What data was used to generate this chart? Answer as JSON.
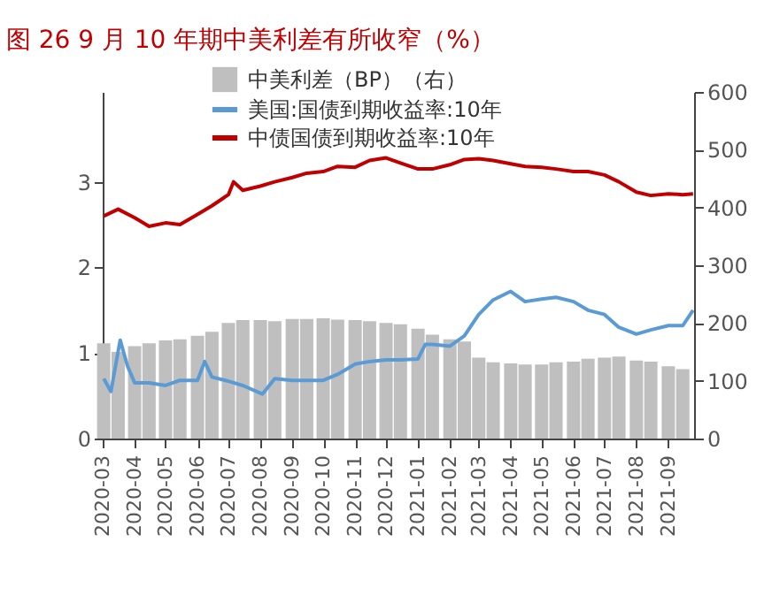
{
  "chart_data": {
    "type": "line",
    "title": "图 26  9 月 10 年期中美利差有所收窄（%）",
    "xlim": [
      "2020-03-01",
      "2021-09-26"
    ],
    "xticks": [
      "2020-03",
      "2020-04",
      "2020-05",
      "2020-06",
      "2020-07",
      "2020-08",
      "2020-09",
      "2020-10",
      "2020-11",
      "2020-12",
      "2021-01",
      "2021-02",
      "2021-03",
      "2021-04",
      "2021-05",
      "2021-06",
      "2021-07",
      "2021-08",
      "2021-09"
    ],
    "ylim": [
      0,
      4.05
    ],
    "yticks": [
      0,
      1,
      2,
      3
    ],
    "y2lim": [
      0,
      600
    ],
    "y2ticks": [
      0,
      100,
      200,
      300,
      400,
      500,
      600
    ],
    "grid": false,
    "legend": "top",
    "series": [
      {
        "name": "中美利差（BP）（右）",
        "type": "bar",
        "axis": "y2",
        "color": "#bfbfbf",
        "x": [
          "2020-03-02",
          "2020-03-16",
          "2020-04-01",
          "2020-04-15",
          "2020-05-01",
          "2020-05-15",
          "2020-06-01",
          "2020-06-15",
          "2020-07-01",
          "2020-07-15",
          "2020-08-01",
          "2020-08-15",
          "2020-09-01",
          "2020-09-15",
          "2020-10-01",
          "2020-10-15",
          "2020-11-01",
          "2020-11-15",
          "2020-12-01",
          "2020-12-15",
          "2021-01-01",
          "2021-01-15",
          "2021-02-01",
          "2021-02-15",
          "2021-03-01",
          "2021-03-15",
          "2021-04-01",
          "2021-04-15",
          "2021-05-01",
          "2021-05-15",
          "2021-06-01",
          "2021-06-15",
          "2021-07-01",
          "2021-07-15",
          "2021-08-01",
          "2021-08-15",
          "2021-09-01",
          "2021-09-15"
        ],
        "values": [
          165,
          150,
          160,
          165,
          170,
          172,
          178,
          185,
          200,
          205,
          205,
          203,
          207,
          207,
          208,
          206,
          205,
          203,
          200,
          198,
          190,
          180,
          172,
          168,
          140,
          132,
          130,
          128,
          128,
          132,
          133,
          138,
          140,
          142,
          135,
          133,
          125,
          120
        ]
      },
      {
        "name": "美国:国债到期收益率:10年",
        "axis": "y",
        "color": "#5b9bd5",
        "x": [
          "2020-03-02",
          "2020-03-09",
          "2020-03-18",
          "2020-03-25",
          "2020-04-01",
          "2020-04-15",
          "2020-05-01",
          "2020-05-15",
          "2020-06-01",
          "2020-06-08",
          "2020-06-15",
          "2020-07-01",
          "2020-07-15",
          "2020-08-03",
          "2020-08-15",
          "2020-09-01",
          "2020-09-15",
          "2020-10-01",
          "2020-10-15",
          "2020-11-01",
          "2020-11-15",
          "2020-12-01",
          "2020-12-15",
          "2021-01-01",
          "2021-01-08",
          "2021-01-15",
          "2021-02-01",
          "2021-02-15",
          "2021-03-01",
          "2021-03-15",
          "2021-04-01",
          "2021-04-15",
          "2021-05-01",
          "2021-05-15",
          "2021-06-01",
          "2021-06-15",
          "2021-07-01",
          "2021-07-15",
          "2021-08-01",
          "2021-08-15",
          "2021-09-01",
          "2021-09-15",
          "2021-09-25"
        ],
        "values": [
          0.7,
          0.55,
          1.15,
          0.85,
          0.65,
          0.65,
          0.62,
          0.68,
          0.68,
          0.9,
          0.72,
          0.67,
          0.62,
          0.52,
          0.7,
          0.68,
          0.68,
          0.68,
          0.75,
          0.87,
          0.9,
          0.92,
          0.92,
          0.93,
          1.1,
          1.1,
          1.08,
          1.2,
          1.45,
          1.62,
          1.72,
          1.6,
          1.63,
          1.65,
          1.6,
          1.5,
          1.45,
          1.3,
          1.22,
          1.27,
          1.32,
          1.32,
          1.5
        ]
      },
      {
        "name": "中债国债到期收益率:10年",
        "axis": "y",
        "color": "#c00000",
        "x": [
          "2020-03-02",
          "2020-03-16",
          "2020-04-01",
          "2020-04-15",
          "2020-05-01",
          "2020-05-15",
          "2020-06-01",
          "2020-06-15",
          "2020-07-01",
          "2020-07-06",
          "2020-07-15",
          "2020-08-01",
          "2020-08-15",
          "2020-09-01",
          "2020-09-15",
          "2020-10-01",
          "2020-10-15",
          "2020-11-01",
          "2020-11-15",
          "2020-12-01",
          "2020-12-15",
          "2021-01-01",
          "2021-01-15",
          "2021-02-01",
          "2021-02-15",
          "2021-03-01",
          "2021-03-15",
          "2021-04-01",
          "2021-04-15",
          "2021-05-01",
          "2021-05-15",
          "2021-06-01",
          "2021-06-15",
          "2021-07-01",
          "2021-07-15",
          "2021-08-01",
          "2021-08-15",
          "2021-09-01",
          "2021-09-15",
          "2021-09-25"
        ],
        "values": [
          2.6,
          2.68,
          2.58,
          2.48,
          2.52,
          2.5,
          2.62,
          2.72,
          2.85,
          3.0,
          2.9,
          2.95,
          3.0,
          3.05,
          3.1,
          3.12,
          3.18,
          3.17,
          3.25,
          3.28,
          3.22,
          3.15,
          3.15,
          3.2,
          3.26,
          3.27,
          3.25,
          3.21,
          3.18,
          3.17,
          3.15,
          3.12,
          3.12,
          3.08,
          3.0,
          2.88,
          2.84,
          2.86,
          2.85,
          2.86
        ]
      }
    ]
  }
}
